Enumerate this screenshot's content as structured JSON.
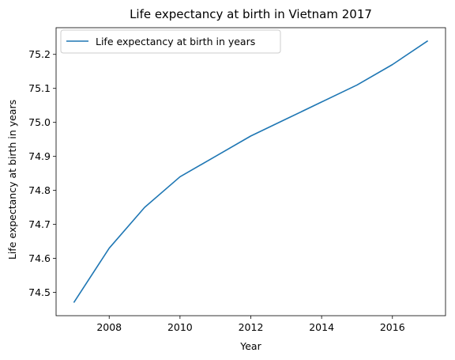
{
  "chart_data": {
    "type": "line",
    "title": "Life expectancy at birth in Vietnam 2017",
    "xlabel": "Year",
    "ylabel": "Life expectancy at birth in years",
    "x": [
      2007,
      2008,
      2009,
      2010,
      2011,
      2012,
      2013,
      2014,
      2015,
      2016,
      2017
    ],
    "series": [
      {
        "name": "Life expectancy at birth in years",
        "color": "#1f77b4",
        "values": [
          74.47,
          74.63,
          74.75,
          74.84,
          74.9,
          74.96,
          75.01,
          75.06,
          75.11,
          75.17,
          75.24
        ]
      }
    ],
    "xlim": [
      2006.5,
      2017.5
    ],
    "ylim": [
      74.4315,
      75.2785
    ],
    "xticks": [
      2008,
      2010,
      2012,
      2014,
      2016
    ],
    "yticks": [
      74.5,
      74.6,
      74.7,
      74.8,
      74.9,
      75.0,
      75.1,
      75.2
    ],
    "ytick_labels": [
      "74.5",
      "74.6",
      "74.7",
      "74.8",
      "74.9",
      "75.0",
      "75.1",
      "75.2"
    ],
    "legend_position": "top-left",
    "grid": false
  }
}
